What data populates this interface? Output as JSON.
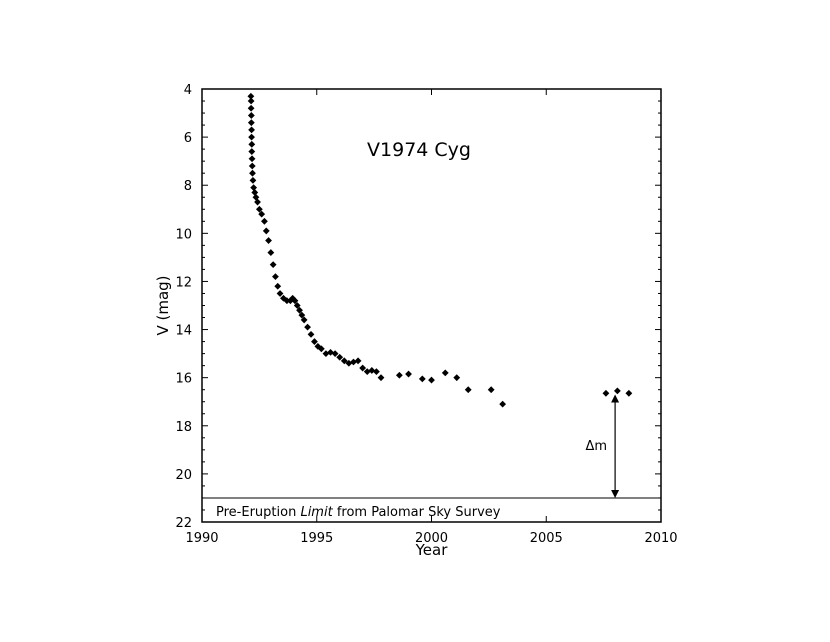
{
  "chart_data": {
    "type": "scatter",
    "title": "V1974 Cyg",
    "xlabel": "Year",
    "ylabel": "V (mag)",
    "xlim": [
      1990,
      2010
    ],
    "ylim": [
      4,
      22
    ],
    "y_inverted": true,
    "grid": false,
    "x_ticks": [
      1990,
      1995,
      2000,
      2005,
      2010
    ],
    "y_ticks": [
      4,
      6,
      8,
      10,
      12,
      14,
      16,
      18,
      20,
      22
    ],
    "points": [
      [
        1992.13,
        4.3
      ],
      [
        1992.14,
        4.5
      ],
      [
        1992.14,
        4.8
      ],
      [
        1992.15,
        5.1
      ],
      [
        1992.15,
        5.4
      ],
      [
        1992.16,
        5.7
      ],
      [
        1992.16,
        6.0
      ],
      [
        1992.17,
        6.3
      ],
      [
        1992.17,
        6.6
      ],
      [
        1992.18,
        6.9
      ],
      [
        1992.19,
        7.2
      ],
      [
        1992.2,
        7.5
      ],
      [
        1992.22,
        7.8
      ],
      [
        1992.25,
        8.1
      ],
      [
        1992.3,
        8.3
      ],
      [
        1992.35,
        8.5
      ],
      [
        1992.42,
        8.7
      ],
      [
        1992.5,
        9.0
      ],
      [
        1992.6,
        9.2
      ],
      [
        1992.72,
        9.5
      ],
      [
        1992.8,
        9.9
      ],
      [
        1992.9,
        10.3
      ],
      [
        1993.0,
        10.8
      ],
      [
        1993.1,
        11.3
      ],
      [
        1993.2,
        11.8
      ],
      [
        1993.3,
        12.2
      ],
      [
        1993.4,
        12.5
      ],
      [
        1993.55,
        12.7
      ],
      [
        1993.7,
        12.8
      ],
      [
        1993.85,
        12.8
      ],
      [
        1993.95,
        12.7
      ],
      [
        1994.05,
        12.8
      ],
      [
        1994.15,
        13.0
      ],
      [
        1994.25,
        13.2
      ],
      [
        1994.35,
        13.4
      ],
      [
        1994.45,
        13.6
      ],
      [
        1994.6,
        13.9
      ],
      [
        1994.75,
        14.2
      ],
      [
        1994.9,
        14.5
      ],
      [
        1995.05,
        14.7
      ],
      [
        1995.2,
        14.8
      ],
      [
        1995.4,
        15.0
      ],
      [
        1995.6,
        14.95
      ],
      [
        1995.8,
        15.0
      ],
      [
        1996.0,
        15.15
      ],
      [
        1996.2,
        15.3
      ],
      [
        1996.4,
        15.4
      ],
      [
        1996.6,
        15.35
      ],
      [
        1996.8,
        15.3
      ],
      [
        1997.0,
        15.6
      ],
      [
        1997.2,
        15.75
      ],
      [
        1997.4,
        15.7
      ],
      [
        1997.6,
        15.75
      ],
      [
        1997.8,
        16.0
      ],
      [
        1998.6,
        15.9
      ],
      [
        1999.0,
        15.85
      ],
      [
        1999.6,
        16.05
      ],
      [
        2000.0,
        16.1
      ],
      [
        2000.6,
        15.8
      ],
      [
        2001.1,
        16.0
      ],
      [
        2001.6,
        16.5
      ],
      [
        2002.6,
        16.5
      ],
      [
        2003.1,
        17.1
      ],
      [
        2007.6,
        16.65
      ],
      [
        2008.1,
        16.55
      ],
      [
        2008.6,
        16.65
      ]
    ],
    "limit_line": {
      "y": 21.0,
      "label_pre": "Pre-Eruption ",
      "label_em": "Limit",
      "label_post": " from Palomar Sky Survey"
    },
    "delta_m": {
      "x": 2008.0,
      "y_from": 16.7,
      "y_to": 21.0,
      "label": "Δm"
    }
  }
}
